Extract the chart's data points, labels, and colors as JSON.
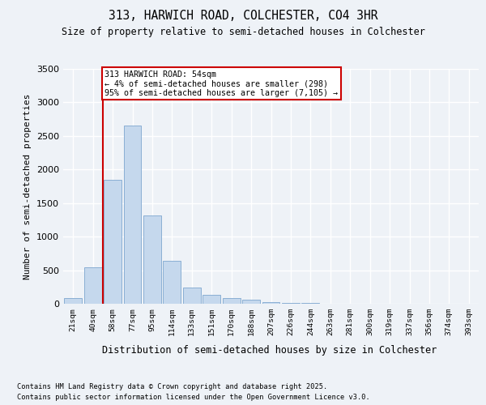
{
  "title1": "313, HARWICH ROAD, COLCHESTER, CO4 3HR",
  "title2": "Size of property relative to semi-detached houses in Colchester",
  "xlabel": "Distribution of semi-detached houses by size in Colchester",
  "ylabel": "Number of semi-detached properties",
  "categories": [
    "21sqm",
    "40sqm",
    "58sqm",
    "77sqm",
    "95sqm",
    "114sqm",
    "133sqm",
    "151sqm",
    "170sqm",
    "188sqm",
    "207sqm",
    "226sqm",
    "244sqm",
    "263sqm",
    "281sqm",
    "300sqm",
    "319sqm",
    "337sqm",
    "356sqm",
    "374sqm",
    "393sqm"
  ],
  "values": [
    80,
    540,
    1850,
    2650,
    1320,
    640,
    240,
    130,
    90,
    55,
    30,
    15,
    8,
    4,
    2,
    1,
    0,
    0,
    0,
    0,
    0
  ],
  "bar_color": "#c5d8ed",
  "bar_edge_color": "#8aafd4",
  "highlight_color": "#cc0000",
  "annotation_title": "313 HARWICH ROAD: 54sqm",
  "annotation_line1": "← 4% of semi-detached houses are smaller (298)",
  "annotation_line2": "95% of semi-detached houses are larger (7,105) →",
  "vline_x": 1.5,
  "ylim": [
    0,
    3500
  ],
  "yticks": [
    0,
    500,
    1000,
    1500,
    2000,
    2500,
    3000,
    3500
  ],
  "background_color": "#eef2f7",
  "grid_color": "#ffffff",
  "footer1": "Contains HM Land Registry data © Crown copyright and database right 2025.",
  "footer2": "Contains public sector information licensed under the Open Government Licence v3.0."
}
